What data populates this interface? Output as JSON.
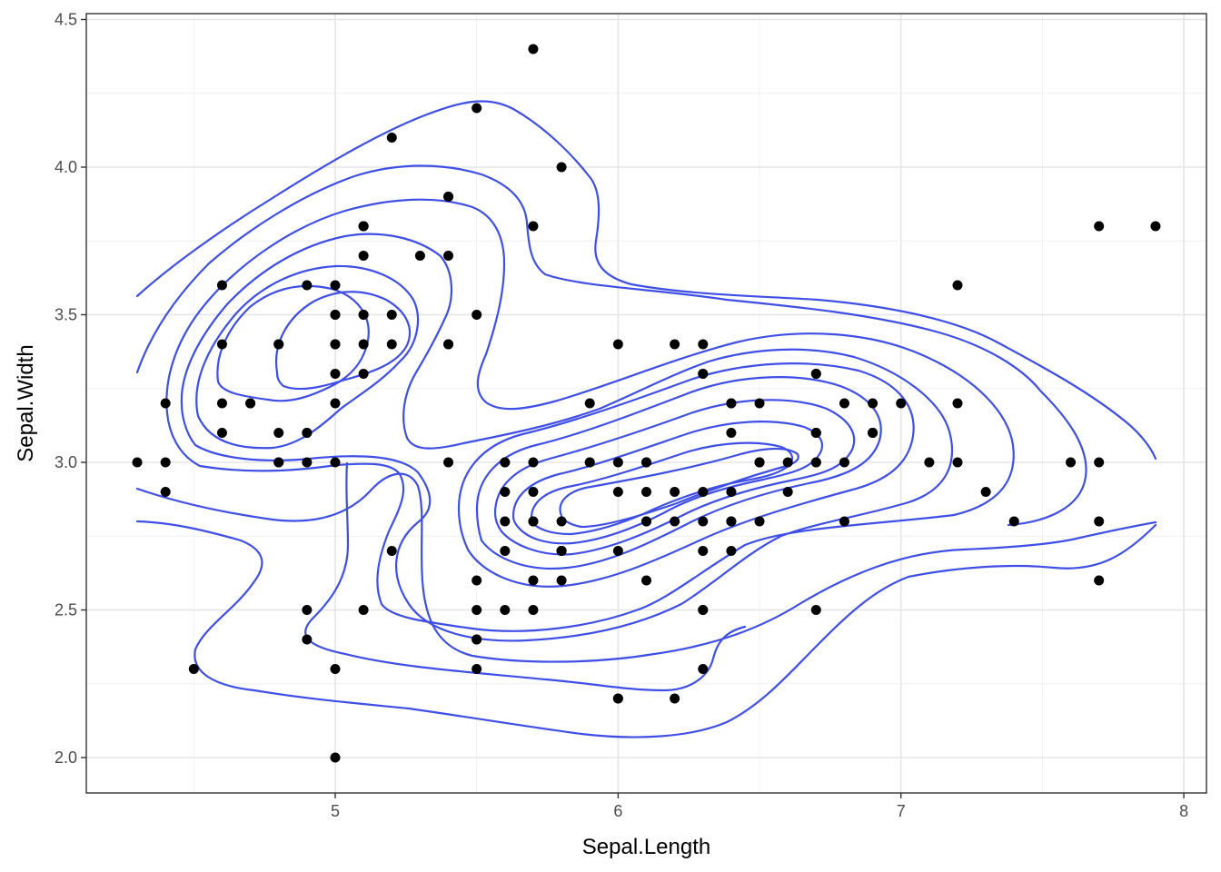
{
  "chart_data": {
    "type": "scatter",
    "subtype": "scatter with 2D density contours",
    "xlabel": "Sepal.Length",
    "ylabel": "Sepal.Width",
    "xlim": [
      4.12,
      8.08
    ],
    "ylim": [
      1.88,
      4.52
    ],
    "x_major_ticks": [
      5,
      6,
      7,
      8
    ],
    "x_tick_labels": [
      "5",
      "6",
      "7",
      "8"
    ],
    "x_minor_ticks": [
      4.5,
      5.5,
      6.5,
      7.5
    ],
    "y_major_ticks": [
      2.0,
      2.5,
      3.0,
      3.5,
      4.0,
      4.5
    ],
    "y_tick_labels": [
      "2.0",
      "2.5",
      "3.0",
      "3.5",
      "4.0",
      "4.5"
    ],
    "y_minor_ticks": [
      2.25,
      2.75,
      3.25,
      3.75,
      4.25
    ],
    "grid": true,
    "colors": {
      "points": "#000000",
      "contours": "#3f4fe6",
      "grid": "#e5e5e5",
      "border": "#333333"
    },
    "points": [
      [
        5.1,
        3.5
      ],
      [
        4.9,
        3.0
      ],
      [
        4.7,
        3.2
      ],
      [
        4.6,
        3.1
      ],
      [
        5.0,
        3.6
      ],
      [
        5.4,
        3.9
      ],
      [
        4.6,
        3.4
      ],
      [
        5.0,
        3.4
      ],
      [
        4.4,
        2.9
      ],
      [
        4.9,
        3.1
      ],
      [
        5.4,
        3.7
      ],
      [
        4.8,
        3.4
      ],
      [
        4.8,
        3.0
      ],
      [
        4.3,
        3.0
      ],
      [
        5.8,
        4.0
      ],
      [
        5.7,
        4.4
      ],
      [
        5.4,
        3.9
      ],
      [
        5.1,
        3.5
      ],
      [
        5.7,
        3.8
      ],
      [
        5.1,
        3.8
      ],
      [
        5.4,
        3.4
      ],
      [
        5.1,
        3.7
      ],
      [
        4.6,
        3.6
      ],
      [
        5.1,
        3.3
      ],
      [
        4.8,
        3.4
      ],
      [
        5.0,
        3.0
      ],
      [
        5.0,
        3.4
      ],
      [
        5.2,
        3.5
      ],
      [
        5.2,
        3.4
      ],
      [
        4.7,
        3.2
      ],
      [
        4.8,
        3.1
      ],
      [
        5.4,
        3.4
      ],
      [
        5.2,
        4.1
      ],
      [
        5.5,
        4.2
      ],
      [
        4.9,
        3.1
      ],
      [
        5.0,
        3.2
      ],
      [
        5.5,
        3.5
      ],
      [
        4.9,
        3.6
      ],
      [
        4.4,
        3.0
      ],
      [
        5.1,
        3.4
      ],
      [
        5.0,
        3.5
      ],
      [
        4.5,
        2.3
      ],
      [
        4.4,
        3.2
      ],
      [
        5.0,
        3.5
      ],
      [
        5.1,
        3.8
      ],
      [
        4.8,
        3.0
      ],
      [
        5.1,
        3.8
      ],
      [
        4.6,
        3.2
      ],
      [
        5.3,
        3.7
      ],
      [
        5.0,
        3.3
      ],
      [
        7.0,
        3.2
      ],
      [
        6.4,
        3.2
      ],
      [
        6.9,
        3.1
      ],
      [
        5.5,
        2.3
      ],
      [
        6.5,
        2.8
      ],
      [
        5.7,
        2.8
      ],
      [
        6.3,
        3.3
      ],
      [
        4.9,
        2.4
      ],
      [
        6.6,
        2.9
      ],
      [
        5.2,
        2.7
      ],
      [
        5.0,
        2.0
      ],
      [
        5.9,
        3.0
      ],
      [
        6.0,
        2.2
      ],
      [
        6.1,
        2.9
      ],
      [
        5.6,
        2.9
      ],
      [
        6.7,
        3.1
      ],
      [
        5.6,
        3.0
      ],
      [
        5.8,
        2.7
      ],
      [
        6.2,
        2.2
      ],
      [
        5.6,
        2.5
      ],
      [
        5.9,
        3.2
      ],
      [
        6.1,
        2.8
      ],
      [
        6.3,
        2.5
      ],
      [
        6.1,
        2.8
      ],
      [
        6.4,
        2.9
      ],
      [
        6.6,
        3.0
      ],
      [
        6.8,
        2.8
      ],
      [
        6.7,
        3.0
      ],
      [
        6.0,
        2.9
      ],
      [
        5.7,
        2.6
      ],
      [
        5.5,
        2.4
      ],
      [
        5.5,
        2.4
      ],
      [
        5.8,
        2.7
      ],
      [
        6.0,
        2.7
      ],
      [
        5.4,
        3.0
      ],
      [
        6.0,
        3.4
      ],
      [
        6.7,
        3.1
      ],
      [
        6.3,
        2.3
      ],
      [
        5.6,
        3.0
      ],
      [
        5.5,
        2.5
      ],
      [
        5.5,
        2.6
      ],
      [
        6.1,
        3.0
      ],
      [
        5.8,
        2.6
      ],
      [
        5.0,
        2.3
      ],
      [
        5.6,
        2.7
      ],
      [
        5.7,
        3.0
      ],
      [
        5.7,
        2.9
      ],
      [
        6.2,
        2.9
      ],
      [
        5.1,
        2.5
      ],
      [
        5.7,
        2.8
      ],
      [
        6.3,
        3.3
      ],
      [
        5.8,
        2.7
      ],
      [
        7.1,
        3.0
      ],
      [
        6.3,
        2.9
      ],
      [
        6.5,
        3.0
      ],
      [
        7.6,
        3.0
      ],
      [
        4.9,
        2.5
      ],
      [
        7.3,
        2.9
      ],
      [
        6.7,
        2.5
      ],
      [
        7.2,
        3.6
      ],
      [
        6.5,
        3.2
      ],
      [
        6.4,
        2.7
      ],
      [
        6.8,
        3.0
      ],
      [
        5.7,
        2.5
      ],
      [
        5.8,
        2.8
      ],
      [
        6.4,
        3.2
      ],
      [
        6.5,
        3.0
      ],
      [
        7.7,
        3.8
      ],
      [
        7.7,
        2.6
      ],
      [
        6.0,
        2.2
      ],
      [
        6.9,
        3.2
      ],
      [
        5.6,
        2.8
      ],
      [
        7.7,
        2.8
      ],
      [
        6.3,
        2.7
      ],
      [
        6.7,
        3.3
      ],
      [
        7.2,
        3.2
      ],
      [
        6.2,
        2.8
      ],
      [
        6.1,
        3.0
      ],
      [
        6.4,
        2.8
      ],
      [
        7.2,
        3.0
      ],
      [
        7.4,
        2.8
      ],
      [
        7.9,
        3.8
      ],
      [
        6.4,
        2.8
      ],
      [
        6.3,
        2.8
      ],
      [
        6.1,
        2.6
      ],
      [
        7.7,
        3.0
      ],
      [
        6.3,
        3.4
      ],
      [
        6.4,
        3.1
      ],
      [
        6.0,
        3.0
      ],
      [
        6.9,
        3.1
      ],
      [
        6.7,
        3.1
      ],
      [
        6.9,
        3.1
      ],
      [
        5.8,
        2.7
      ],
      [
        6.8,
        3.2
      ],
      [
        6.7,
        3.3
      ],
      [
        6.7,
        3.0
      ],
      [
        6.3,
        2.5
      ],
      [
        6.5,
        3.0
      ],
      [
        6.2,
        3.4
      ],
      [
        5.9,
        3.0
      ]
    ]
  }
}
